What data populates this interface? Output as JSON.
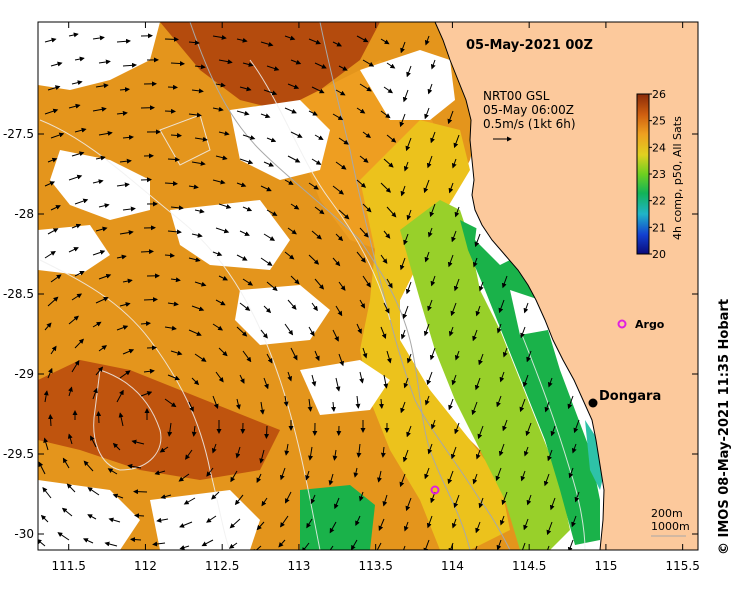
{
  "map": {
    "title": "05-May-2021 00Z",
    "x_ticks": [
      "111.5",
      "112",
      "112.5",
      "113",
      "113.5",
      "114",
      "114.5",
      "115",
      "115.5"
    ],
    "x_tick_values": [
      111.5,
      112,
      112.5,
      113,
      113.5,
      114,
      114.5,
      115,
      115.5
    ],
    "y_ticks": [
      "-27.5",
      "-28",
      "-28.5",
      "-29",
      "-29.5",
      "-30"
    ],
    "y_tick_values": [
      -27.5,
      -28,
      -28.5,
      -29,
      -29.5,
      -30
    ],
    "lon_range": [
      111.3,
      115.6
    ],
    "lat_range": [
      -30.1,
      -26.8
    ],
    "current_legend": {
      "line1": "NRT00 GSL",
      "line2": "05-May 06:00Z",
      "line3": "0.5m/s (1kt 6h)"
    },
    "colorbar": {
      "title": "4h comp, p50, All Sats",
      "ticks": [
        "26",
        "25",
        "24",
        "23",
        "22",
        "21",
        "20"
      ],
      "min": 20,
      "max": 26
    },
    "places": {
      "dongara": "Dongara",
      "argo": "Argo"
    },
    "depth_legend": {
      "line1": "200m",
      "line2": "1000m"
    },
    "credit": "© IMOS 08-May-2021 11:35 Hobart",
    "colors": {
      "land": "#fcc99c",
      "marker_argo": "#e020e0",
      "dongara_dot": "#000000"
    }
  }
}
